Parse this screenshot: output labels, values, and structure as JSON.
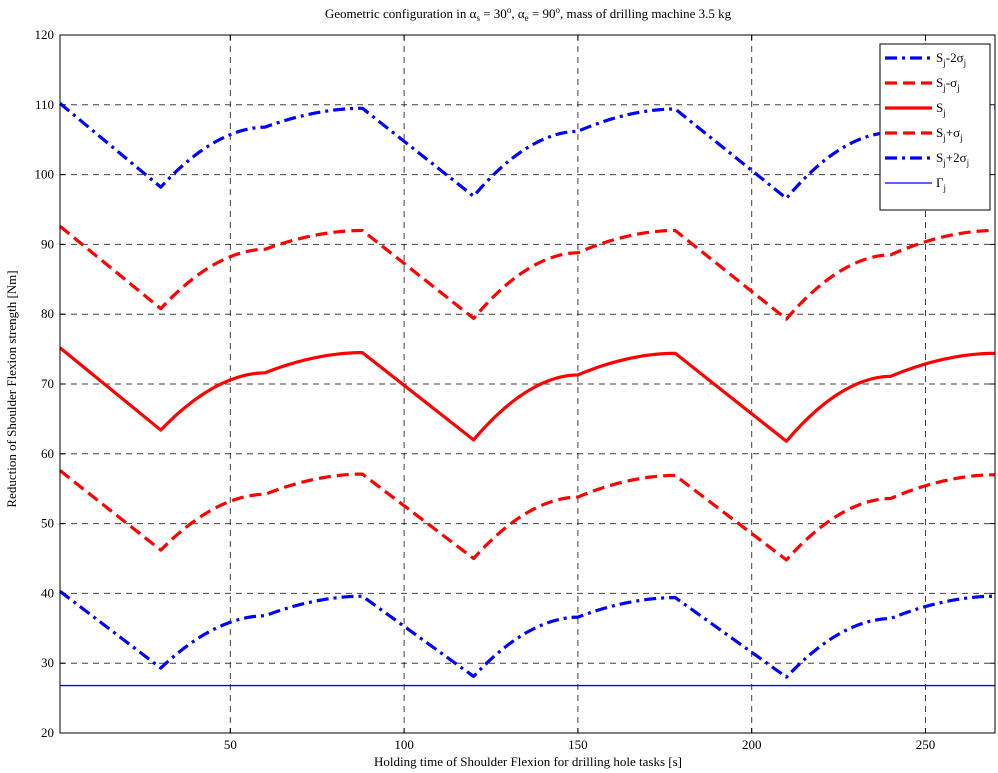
{
  "chart_data": {
    "type": "line",
    "title": "Geometric configuration in α_s = 30°, α_e = 90°, mass of drilling machine 3.5 kg",
    "title_parts": {
      "t1": "Geometric configuration in α",
      "s1": "s",
      "t2": " = 30",
      "sup1": "o",
      "t3": ", α",
      "s2": "e",
      "t4": " = 90",
      "sup2": "o",
      "t5": ", mass of drilling machine 3.5 kg"
    },
    "xlabel": "Holding time of Shoulder Flexion for drilling hole tasks [s]",
    "ylabel": "Reduction of Shoulder Flexion strength [Nm]",
    "xlim": [
      1,
      270
    ],
    "ylim": [
      20,
      120
    ],
    "xticks": [
      50,
      100,
      150,
      200,
      250
    ],
    "yticks": [
      20,
      30,
      40,
      50,
      60,
      70,
      80,
      90,
      100,
      110,
      120
    ],
    "grid": true,
    "legend_position": "top-right",
    "series": [
      {
        "name": "S_j-2σ_j",
        "legend": {
          "main": "S",
          "sub": "j",
          "rest": "-2σ",
          "sub2": "j"
        },
        "color": "#0000ff",
        "style": "dashdot",
        "width": "thick",
        "points": [
          [
            1,
            110.2
          ],
          [
            30,
            98.2
          ],
          [
            60,
            106.8
          ],
          [
            88,
            109.5
          ],
          [
            120,
            96.9
          ],
          [
            150,
            106.2
          ],
          [
            178,
            109.4
          ],
          [
            210,
            96.6
          ],
          [
            240,
            106.0
          ],
          [
            270,
            109.6
          ]
        ]
      },
      {
        "name": "S_j-σ_j",
        "legend": {
          "main": "S",
          "sub": "j",
          "rest": "-σ",
          "sub2": "j"
        },
        "color": "#ff0000",
        "style": "dashed",
        "width": "thick",
        "points": [
          [
            1,
            92.6
          ],
          [
            30,
            80.8
          ],
          [
            60,
            89.3
          ],
          [
            88,
            92.0
          ],
          [
            120,
            79.4
          ],
          [
            150,
            88.8
          ],
          [
            178,
            92.0
          ],
          [
            210,
            79.3
          ],
          [
            240,
            88.5
          ],
          [
            270,
            92.0
          ]
        ]
      },
      {
        "name": "S_j",
        "legend": {
          "main": "S",
          "sub": "j",
          "rest": "",
          "sub2": ""
        },
        "color": "#ff0000",
        "style": "solid",
        "width": "thick",
        "points": [
          [
            1,
            75.2
          ],
          [
            30,
            63.4
          ],
          [
            60,
            71.6
          ],
          [
            88,
            74.5
          ],
          [
            120,
            62.0
          ],
          [
            150,
            71.3
          ],
          [
            178,
            74.4
          ],
          [
            210,
            61.8
          ],
          [
            240,
            71.1
          ],
          [
            270,
            74.4
          ]
        ]
      },
      {
        "name": "S_j+σ_j",
        "legend": {
          "main": "S",
          "sub": "j",
          "rest": "+σ",
          "sub2": "j"
        },
        "color": "#ff0000",
        "style": "dashed",
        "width": "thick",
        "points": [
          [
            1,
            57.6
          ],
          [
            30,
            46.2
          ],
          [
            60,
            54.2
          ],
          [
            88,
            57.1
          ],
          [
            120,
            45.0
          ],
          [
            150,
            53.8
          ],
          [
            178,
            56.9
          ],
          [
            210,
            44.8
          ],
          [
            240,
            53.6
          ],
          [
            270,
            57.0
          ]
        ]
      },
      {
        "name": "S_j+2σ_j",
        "legend": {
          "main": "S",
          "sub": "j",
          "rest": "+2σ",
          "sub2": "j"
        },
        "color": "#0000ff",
        "style": "dashdot",
        "width": "thick",
        "points": [
          [
            1,
            40.3
          ],
          [
            30,
            29.3
          ],
          [
            60,
            36.8
          ],
          [
            88,
            39.6
          ],
          [
            120,
            28.1
          ],
          [
            150,
            36.6
          ],
          [
            178,
            39.4
          ],
          [
            210,
            28.0
          ],
          [
            240,
            36.4
          ],
          [
            270,
            39.6
          ]
        ]
      },
      {
        "name": "Γ_j",
        "legend": {
          "main": "Γ",
          "sub": "j",
          "rest": "",
          "sub2": ""
        },
        "color": "#0000ff",
        "style": "solid",
        "width": "thin",
        "points": [
          [
            1,
            26.8
          ],
          [
            270,
            26.8
          ]
        ]
      }
    ]
  }
}
